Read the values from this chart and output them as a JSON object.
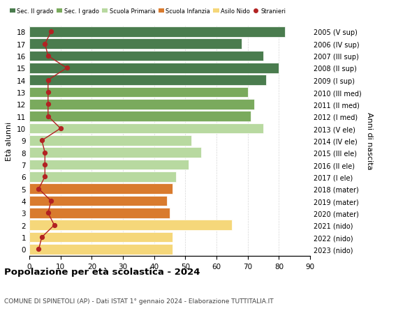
{
  "ages": [
    18,
    17,
    16,
    15,
    14,
    13,
    12,
    11,
    10,
    9,
    8,
    7,
    6,
    5,
    4,
    3,
    2,
    1,
    0
  ],
  "bar_values": [
    82,
    68,
    75,
    80,
    76,
    70,
    72,
    71,
    75,
    52,
    55,
    51,
    47,
    46,
    44,
    45,
    65,
    46,
    46
  ],
  "bar_colors": [
    "#4a7c4e",
    "#4a7c4e",
    "#4a7c4e",
    "#4a7c4e",
    "#4a7c4e",
    "#7aaa5d",
    "#7aaa5d",
    "#7aaa5d",
    "#b8d9a0",
    "#b8d9a0",
    "#b8d9a0",
    "#b8d9a0",
    "#b8d9a0",
    "#d97b2e",
    "#d97b2e",
    "#d97b2e",
    "#f5d77a",
    "#f5d77a",
    "#f5d77a"
  ],
  "stranieri_values": [
    7,
    5,
    6,
    12,
    6,
    6,
    6,
    6,
    10,
    4,
    5,
    5,
    5,
    3,
    7,
    6,
    8,
    4,
    3
  ],
  "right_labels_ordered": [
    "2023 (nido)",
    "2022 (nido)",
    "2021 (nido)",
    "2020 (mater)",
    "2019 (mater)",
    "2018 (mater)",
    "2017 (I ele)",
    "2016 (II ele)",
    "2015 (III ele)",
    "2014 (IV ele)",
    "2013 (V ele)",
    "2012 (I med)",
    "2011 (II med)",
    "2010 (III med)",
    "2009 (I sup)",
    "2008 (II sup)",
    "2007 (III sup)",
    "2006 (IV sup)",
    "2005 (V sup)"
  ],
  "legend_labels": [
    "Sec. II grado",
    "Sec. I grado",
    "Scuola Primaria",
    "Scuola Infanzia",
    "Asilo Nido",
    "Stranieri"
  ],
  "legend_colors": [
    "#4a7c4e",
    "#7aaa5d",
    "#b8d9a0",
    "#d97b2e",
    "#f5d77a",
    "#b22222"
  ],
  "ylabel_left": "Età alunni",
  "ylabel_right": "Anni di nascita",
  "title": "Popolazione per età scolastica - 2024",
  "subtitle": "COMUNE DI SPINETOLI (AP) - Dati ISTAT 1° gennaio 2024 - Elaborazione TUTTITALIA.IT",
  "xlim": [
    0,
    90
  ],
  "xticks": [
    0,
    10,
    20,
    30,
    40,
    50,
    60,
    70,
    80,
    90
  ],
  "background_color": "#ffffff",
  "bar_height": 0.85,
  "stranieri_color": "#b22222",
  "stranieri_line_color": "#b22222"
}
